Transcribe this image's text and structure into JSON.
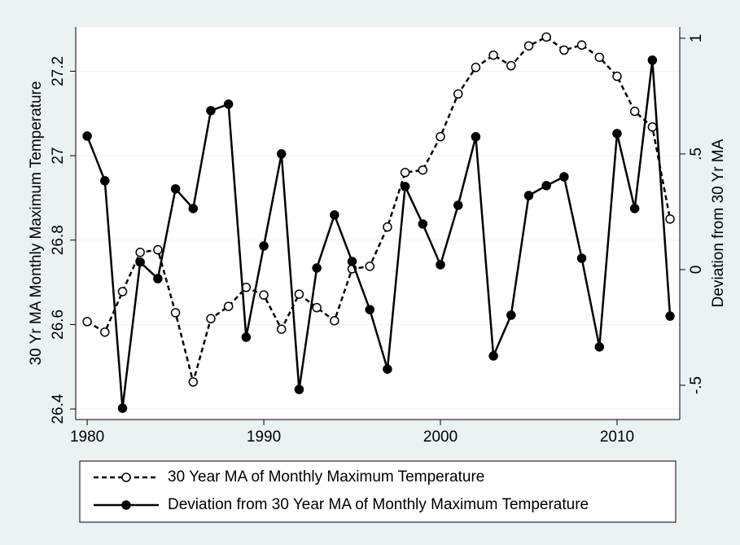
{
  "chart_data": {
    "type": "line",
    "x": [
      1980,
      1981,
      1982,
      1983,
      1984,
      1985,
      1986,
      1987,
      1988,
      1989,
      1990,
      1991,
      1992,
      1993,
      1994,
      1995,
      1996,
      1997,
      1998,
      1999,
      2000,
      2001,
      2002,
      2003,
      2004,
      2005,
      2006,
      2007,
      2008,
      2009,
      2010,
      2011,
      2012,
      2013
    ],
    "xlim": [
      1979.35,
      2013.55
    ],
    "xticks": [
      1980,
      1990,
      2000,
      2010
    ],
    "ylabel": "30 Yr MA Monthly Maximum Temperature",
    "y2label": "Deviation from 30 Yr MA",
    "ylim": [
      26.375,
      27.305
    ],
    "yticks": [
      26.4,
      26.6,
      26.8,
      27,
      27.2
    ],
    "y2lim": [
      -0.648,
      1.049
    ],
    "y2ticks": [
      {
        "value": -0.5,
        "label": "-.5"
      },
      0,
      {
        "value": 0.5,
        "label": ".5"
      },
      1
    ],
    "grid": true,
    "series": [
      {
        "name": "30 Year MA of Monthly Maximum Temperature",
        "color": "#000000",
        "dash": true,
        "marker": "hollow",
        "values": [
          26.607,
          26.582,
          26.678,
          26.771,
          26.777,
          26.628,
          26.464,
          26.614,
          26.643,
          26.688,
          26.67,
          26.589,
          26.672,
          26.64,
          26.609,
          26.732,
          26.738,
          26.831,
          26.96,
          26.966,
          27.045,
          27.146,
          27.209,
          27.238,
          27.213,
          27.26,
          27.281,
          27.25,
          27.262,
          27.233,
          27.188,
          27.105,
          27.068,
          26.85
        ]
      },
      {
        "name": "Deviation from 30 Year MA of Monthly Maximum Temperature",
        "color": "#000000",
        "dash": false,
        "marker": "filled",
        "axis": "y2",
        "values": [
          0.577,
          0.384,
          -0.599,
          0.032,
          -0.039,
          0.349,
          0.264,
          0.687,
          0.715,
          -0.292,
          0.102,
          0.5,
          -0.518,
          0.007,
          0.236,
          0.035,
          -0.173,
          -0.43,
          0.359,
          0.197,
          0.021,
          0.278,
          0.574,
          -0.373,
          -0.197,
          0.32,
          0.363,
          0.401,
          0.049,
          -0.334,
          0.588,
          0.264,
          0.905,
          -0.201
        ]
      }
    ]
  }
}
